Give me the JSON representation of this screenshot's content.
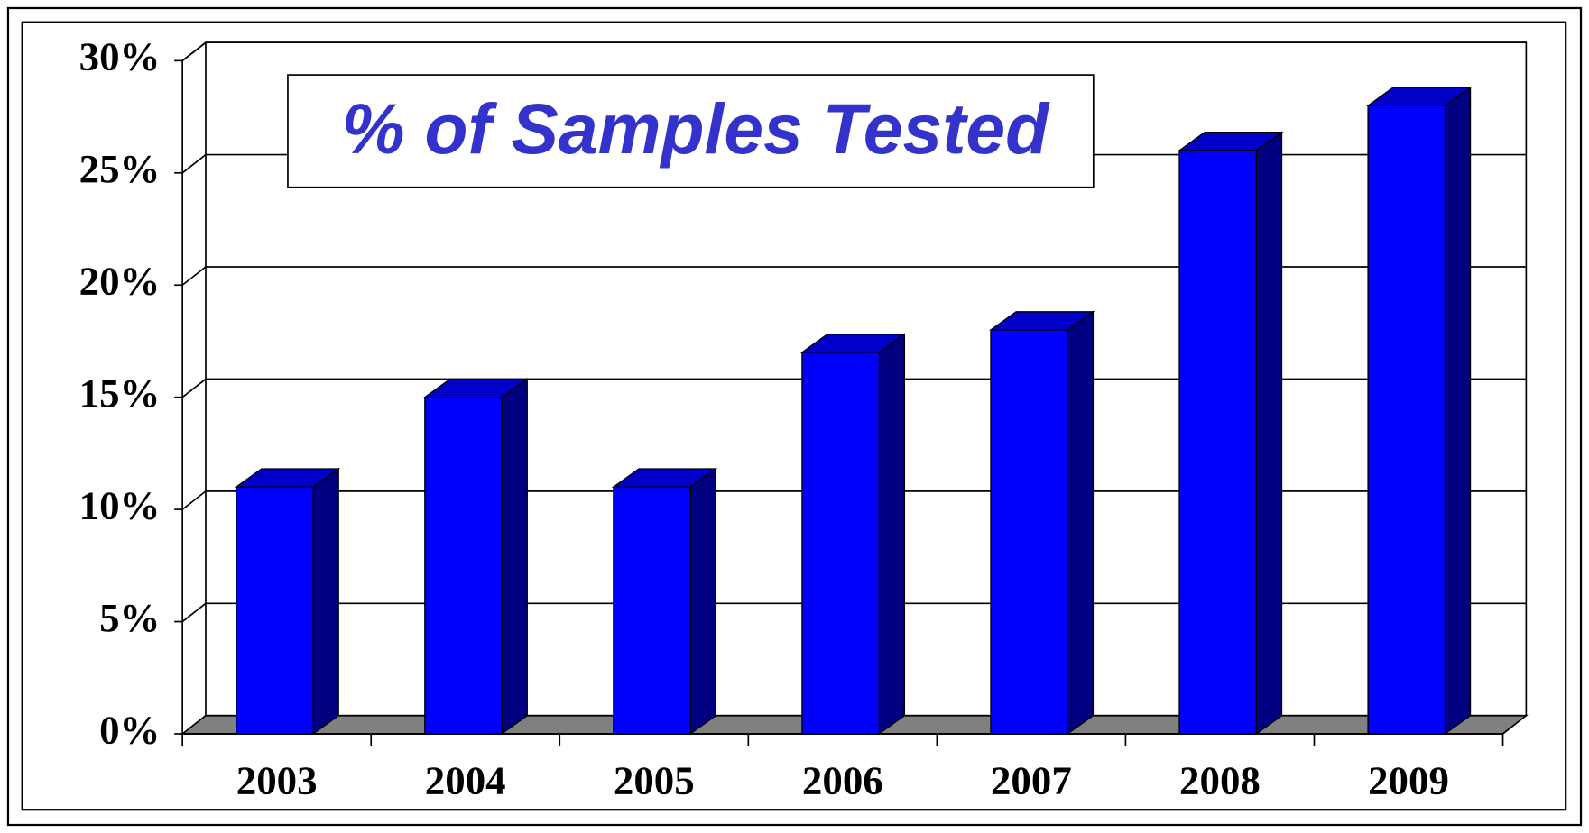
{
  "chart_data": {
    "type": "bar3d",
    "title": "% of Samples Tested",
    "categories": [
      "2003",
      "2004",
      "2005",
      "2006",
      "2007",
      "2008",
      "2009"
    ],
    "values": [
      11,
      15,
      11,
      17,
      18,
      26,
      28
    ],
    "color": "#0000ff",
    "side_color": "#000080",
    "top_color": "#0000c8",
    "ylim": [
      0,
      30
    ],
    "yticks": [
      {
        "value": 0,
        "label": "0%"
      },
      {
        "value": 5,
        "label": "5%"
      },
      {
        "value": 10,
        "label": "10%"
      },
      {
        "value": 15,
        "label": "15%"
      },
      {
        "value": 20,
        "label": "20%"
      },
      {
        "value": 25,
        "label": "25%"
      },
      {
        "value": 30,
        "label": "30%"
      }
    ],
    "grid": true
  }
}
